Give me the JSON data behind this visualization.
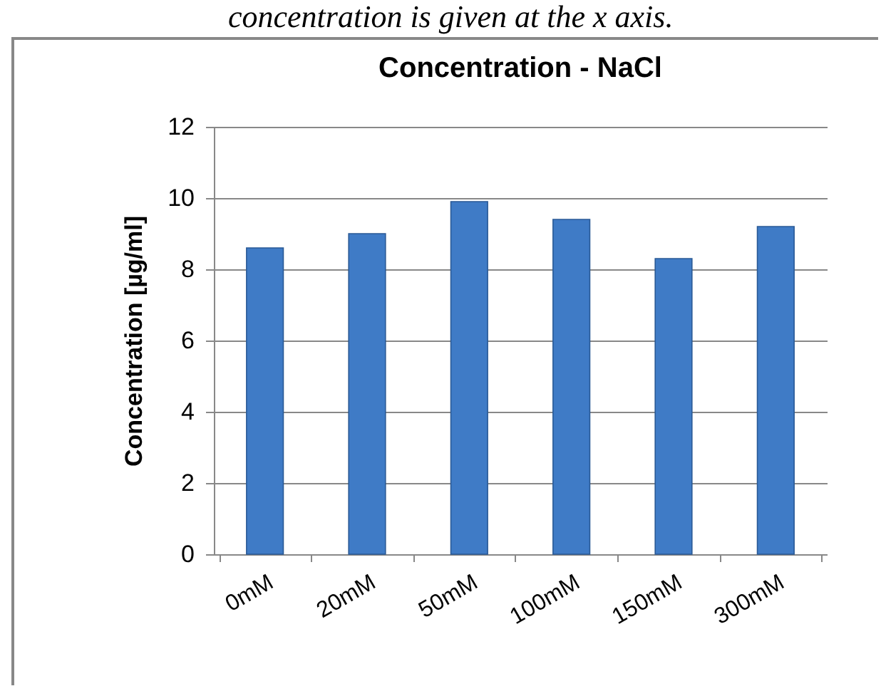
{
  "chart_data": {
    "type": "bar",
    "title": "Concentration - NaCl",
    "ylabel": "Concentration [µg/ml]",
    "annotations": [
      "concentration is given at the x axis."
    ],
    "categories": [
      "0mM",
      "20mM",
      "50mM",
      "100mM",
      "150mM",
      "300mM"
    ],
    "values": [
      8.6,
      9.0,
      9.9,
      9.4,
      8.3,
      9.2
    ],
    "color": "#3f7bc6",
    "ylim": [
      0,
      12
    ],
    "yticks": [
      0,
      2,
      4,
      6,
      8,
      10,
      12
    ],
    "grid": "y"
  }
}
